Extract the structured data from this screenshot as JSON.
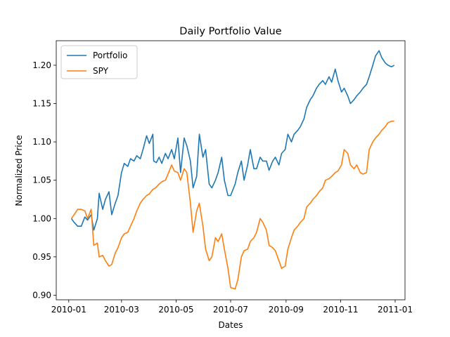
{
  "chart_data": {
    "type": "line",
    "title": "Daily Portfolio Value",
    "xlabel": "Dates",
    "ylabel": "Normalized Price",
    "xlim": [
      "2009-12-18",
      "2011-01-12"
    ],
    "ylim": [
      0.894,
      1.232
    ],
    "x_ticks": [
      "2010-01",
      "2010-03",
      "2010-05",
      "2010-07",
      "2010-09",
      "2010-11",
      "2011-01"
    ],
    "x_tick_values": [
      "2010-01-01",
      "2010-03-01",
      "2010-05-01",
      "2010-07-01",
      "2010-09-01",
      "2010-11-01",
      "2011-01-01"
    ],
    "y_ticks": [
      "0.90",
      "0.95",
      "1.00",
      "1.05",
      "1.10",
      "1.15",
      "1.20"
    ],
    "y_tick_values": [
      0.9,
      0.95,
      1.0,
      1.05,
      1.1,
      1.15,
      1.2
    ],
    "grid": false,
    "legend": {
      "placement": "top-left"
    },
    "series": [
      {
        "name": "Portfolio",
        "color": "#1f77b4",
        "points": [
          [
            "2010-01-04",
            1.0
          ],
          [
            "2010-01-07",
            0.995
          ],
          [
            "2010-01-11",
            0.99
          ],
          [
            "2010-01-15",
            0.99
          ],
          [
            "2010-01-19",
            1.002
          ],
          [
            "2010-01-22",
            0.998
          ],
          [
            "2010-01-26",
            1.005
          ],
          [
            "2010-01-29",
            0.985
          ],
          [
            "2010-02-02",
            1.0
          ],
          [
            "2010-02-04",
            1.033
          ],
          [
            "2010-02-08",
            1.012
          ],
          [
            "2010-02-11",
            1.025
          ],
          [
            "2010-02-15",
            1.035
          ],
          [
            "2010-02-18",
            1.005
          ],
          [
            "2010-02-22",
            1.02
          ],
          [
            "2010-02-25",
            1.03
          ],
          [
            "2010-03-01",
            1.06
          ],
          [
            "2010-03-04",
            1.072
          ],
          [
            "2010-03-08",
            1.068
          ],
          [
            "2010-03-11",
            1.078
          ],
          [
            "2010-03-15",
            1.075
          ],
          [
            "2010-03-18",
            1.082
          ],
          [
            "2010-03-22",
            1.078
          ],
          [
            "2010-03-25",
            1.09
          ],
          [
            "2010-03-29",
            1.108
          ],
          [
            "2010-04-01",
            1.098
          ],
          [
            "2010-04-05",
            1.11
          ],
          [
            "2010-04-06",
            1.075
          ],
          [
            "2010-04-09",
            1.073
          ],
          [
            "2010-04-12",
            1.08
          ],
          [
            "2010-04-15",
            1.072
          ],
          [
            "2010-04-19",
            1.085
          ],
          [
            "2010-04-22",
            1.078
          ],
          [
            "2010-04-26",
            1.09
          ],
          [
            "2010-04-29",
            1.078
          ],
          [
            "2010-05-03",
            1.105
          ],
          [
            "2010-05-06",
            1.06
          ],
          [
            "2010-05-10",
            1.105
          ],
          [
            "2010-05-13",
            1.095
          ],
          [
            "2010-05-17",
            1.075
          ],
          [
            "2010-05-20",
            1.04
          ],
          [
            "2010-05-24",
            1.055
          ],
          [
            "2010-05-27",
            1.11
          ],
          [
            "2010-05-31",
            1.08
          ],
          [
            "2010-06-03",
            1.09
          ],
          [
            "2010-06-07",
            1.045
          ],
          [
            "2010-06-10",
            1.04
          ],
          [
            "2010-06-14",
            1.05
          ],
          [
            "2010-06-17",
            1.06
          ],
          [
            "2010-06-21",
            1.08
          ],
          [
            "2010-06-24",
            1.05
          ],
          [
            "2010-06-28",
            1.03
          ],
          [
            "2010-07-01",
            1.03
          ],
          [
            "2010-07-06",
            1.045
          ],
          [
            "2010-07-09",
            1.06
          ],
          [
            "2010-07-13",
            1.075
          ],
          [
            "2010-07-16",
            1.05
          ],
          [
            "2010-07-20",
            1.07
          ],
          [
            "2010-07-23",
            1.09
          ],
          [
            "2010-07-27",
            1.065
          ],
          [
            "2010-07-30",
            1.065
          ],
          [
            "2010-08-03",
            1.08
          ],
          [
            "2010-08-06",
            1.075
          ],
          [
            "2010-08-10",
            1.075
          ],
          [
            "2010-08-13",
            1.063
          ],
          [
            "2010-08-17",
            1.075
          ],
          [
            "2010-08-20",
            1.08
          ],
          [
            "2010-08-24",
            1.07
          ],
          [
            "2010-08-27",
            1.085
          ],
          [
            "2010-08-31",
            1.09
          ],
          [
            "2010-09-03",
            1.11
          ],
          [
            "2010-09-07",
            1.1
          ],
          [
            "2010-09-10",
            1.11
          ],
          [
            "2010-09-14",
            1.115
          ],
          [
            "2010-09-17",
            1.12
          ],
          [
            "2010-09-21",
            1.13
          ],
          [
            "2010-09-24",
            1.145
          ],
          [
            "2010-09-28",
            1.155
          ],
          [
            "2010-10-01",
            1.16
          ],
          [
            "2010-10-05",
            1.17
          ],
          [
            "2010-10-08",
            1.175
          ],
          [
            "2010-10-12",
            1.18
          ],
          [
            "2010-10-15",
            1.175
          ],
          [
            "2010-10-19",
            1.185
          ],
          [
            "2010-10-22",
            1.178
          ],
          [
            "2010-10-26",
            1.195
          ],
          [
            "2010-10-29",
            1.18
          ],
          [
            "2010-11-02",
            1.165
          ],
          [
            "2010-11-05",
            1.17
          ],
          [
            "2010-11-09",
            1.16
          ],
          [
            "2010-11-12",
            1.15
          ],
          [
            "2010-11-16",
            1.155
          ],
          [
            "2010-11-19",
            1.16
          ],
          [
            "2010-11-23",
            1.165
          ],
          [
            "2010-11-26",
            1.17
          ],
          [
            "2010-11-30",
            1.175
          ],
          [
            "2010-12-03",
            1.185
          ],
          [
            "2010-12-07",
            1.2
          ],
          [
            "2010-12-10",
            1.212
          ],
          [
            "2010-12-14",
            1.219
          ],
          [
            "2010-12-17",
            1.21
          ],
          [
            "2010-12-21",
            1.203
          ],
          [
            "2010-12-24",
            1.2
          ],
          [
            "2010-12-28",
            1.198
          ],
          [
            "2010-12-31",
            1.2
          ]
        ]
      },
      {
        "name": "SPY",
        "color": "#ff7f0e",
        "points": [
          [
            "2010-01-04",
            1.0
          ],
          [
            "2010-01-07",
            1.005
          ],
          [
            "2010-01-11",
            1.012
          ],
          [
            "2010-01-15",
            1.012
          ],
          [
            "2010-01-19",
            1.01
          ],
          [
            "2010-01-22",
            1.0
          ],
          [
            "2010-01-26",
            1.012
          ],
          [
            "2010-01-29",
            0.965
          ],
          [
            "2010-02-02",
            0.968
          ],
          [
            "2010-02-04",
            0.95
          ],
          [
            "2010-02-08",
            0.952
          ],
          [
            "2010-02-11",
            0.945
          ],
          [
            "2010-02-15",
            0.938
          ],
          [
            "2010-02-18",
            0.94
          ],
          [
            "2010-02-22",
            0.955
          ],
          [
            "2010-02-25",
            0.962
          ],
          [
            "2010-03-01",
            0.975
          ],
          [
            "2010-03-04",
            0.98
          ],
          [
            "2010-03-08",
            0.982
          ],
          [
            "2010-03-11",
            0.99
          ],
          [
            "2010-03-15",
            1.0
          ],
          [
            "2010-03-18",
            1.01
          ],
          [
            "2010-03-22",
            1.02
          ],
          [
            "2010-03-25",
            1.025
          ],
          [
            "2010-03-29",
            1.03
          ],
          [
            "2010-04-01",
            1.032
          ],
          [
            "2010-04-05",
            1.038
          ],
          [
            "2010-04-08",
            1.04
          ],
          [
            "2010-04-12",
            1.045
          ],
          [
            "2010-04-15",
            1.048
          ],
          [
            "2010-04-19",
            1.05
          ],
          [
            "2010-04-22",
            1.058
          ],
          [
            "2010-04-26",
            1.07
          ],
          [
            "2010-04-29",
            1.062
          ],
          [
            "2010-05-03",
            1.06
          ],
          [
            "2010-05-06",
            1.05
          ],
          [
            "2010-05-10",
            1.065
          ],
          [
            "2010-05-13",
            1.06
          ],
          [
            "2010-05-17",
            1.02
          ],
          [
            "2010-05-20",
            0.982
          ],
          [
            "2010-05-24",
            1.01
          ],
          [
            "2010-05-27",
            1.02
          ],
          [
            "2010-05-31",
            0.99
          ],
          [
            "2010-06-03",
            0.96
          ],
          [
            "2010-06-07",
            0.945
          ],
          [
            "2010-06-10",
            0.95
          ],
          [
            "2010-06-14",
            0.975
          ],
          [
            "2010-06-17",
            0.97
          ],
          [
            "2010-06-21",
            0.98
          ],
          [
            "2010-06-24",
            0.96
          ],
          [
            "2010-06-28",
            0.935
          ],
          [
            "2010-07-01",
            0.91
          ],
          [
            "2010-07-06",
            0.908
          ],
          [
            "2010-07-09",
            0.92
          ],
          [
            "2010-07-13",
            0.95
          ],
          [
            "2010-07-16",
            0.958
          ],
          [
            "2010-07-20",
            0.96
          ],
          [
            "2010-07-23",
            0.97
          ],
          [
            "2010-07-27",
            0.975
          ],
          [
            "2010-07-30",
            0.982
          ],
          [
            "2010-08-03",
            1.0
          ],
          [
            "2010-08-06",
            0.995
          ],
          [
            "2010-08-10",
            0.985
          ],
          [
            "2010-08-13",
            0.965
          ],
          [
            "2010-08-17",
            0.962
          ],
          [
            "2010-08-20",
            0.958
          ],
          [
            "2010-08-24",
            0.945
          ],
          [
            "2010-08-27",
            0.935
          ],
          [
            "2010-08-31",
            0.938
          ],
          [
            "2010-09-03",
            0.96
          ],
          [
            "2010-09-07",
            0.975
          ],
          [
            "2010-09-10",
            0.985
          ],
          [
            "2010-09-14",
            0.99
          ],
          [
            "2010-09-17",
            0.995
          ],
          [
            "2010-09-21",
            1.0
          ],
          [
            "2010-09-24",
            1.015
          ],
          [
            "2010-09-28",
            1.02
          ],
          [
            "2010-10-01",
            1.025
          ],
          [
            "2010-10-05",
            1.03
          ],
          [
            "2010-10-08",
            1.035
          ],
          [
            "2010-10-12",
            1.04
          ],
          [
            "2010-10-15",
            1.05
          ],
          [
            "2010-10-19",
            1.052
          ],
          [
            "2010-10-22",
            1.055
          ],
          [
            "2010-10-26",
            1.06
          ],
          [
            "2010-10-29",
            1.062
          ],
          [
            "2010-11-02",
            1.07
          ],
          [
            "2010-11-05",
            1.09
          ],
          [
            "2010-11-09",
            1.085
          ],
          [
            "2010-11-12",
            1.07
          ],
          [
            "2010-11-16",
            1.065
          ],
          [
            "2010-11-19",
            1.07
          ],
          [
            "2010-11-23",
            1.06
          ],
          [
            "2010-11-26",
            1.058
          ],
          [
            "2010-11-30",
            1.06
          ],
          [
            "2010-12-03",
            1.09
          ],
          [
            "2010-12-07",
            1.1
          ],
          [
            "2010-12-10",
            1.105
          ],
          [
            "2010-12-14",
            1.11
          ],
          [
            "2010-12-17",
            1.115
          ],
          [
            "2010-12-21",
            1.12
          ],
          [
            "2010-12-24",
            1.125
          ],
          [
            "2010-12-28",
            1.127
          ],
          [
            "2010-12-31",
            1.127
          ]
        ]
      }
    ]
  }
}
